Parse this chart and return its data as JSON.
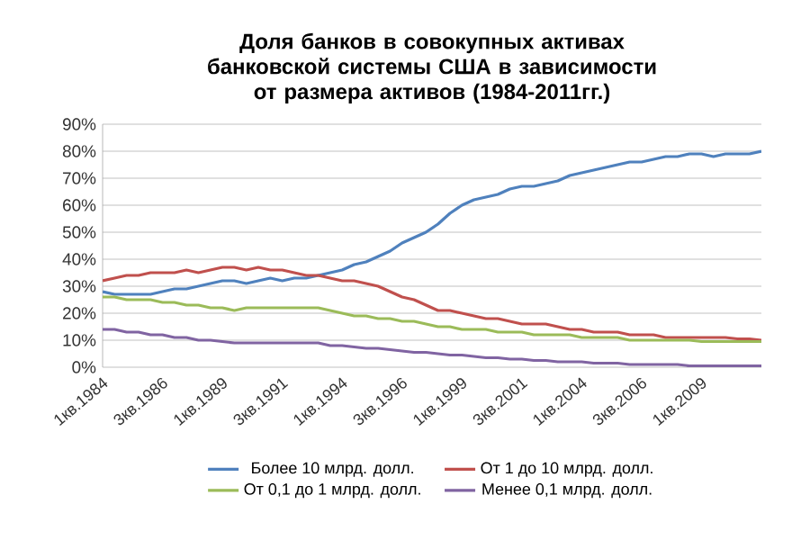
{
  "chart_data": {
    "type": "line",
    "title": "Доля банков в совокупных активах банковской системы США в зависимости от размера активов (1984-2011гг.)",
    "categories": [
      "1кв.1984",
      null,
      null,
      null,
      null,
      "3кв.1986",
      null,
      null,
      null,
      null,
      "1кв.1989",
      null,
      null,
      null,
      null,
      "3кв.1991",
      null,
      null,
      null,
      null,
      "1кв.1994",
      null,
      null,
      null,
      null,
      "3кв.1996",
      null,
      null,
      null,
      null,
      "1кв.1999",
      null,
      null,
      null,
      null,
      "3кв.2001",
      null,
      null,
      null,
      null,
      "1кв.2004",
      null,
      null,
      null,
      null,
      "3кв.2006",
      null,
      null,
      null,
      null,
      "1кв.2009",
      null,
      null,
      null,
      null,
      null
    ],
    "series": [
      {
        "name": "Более 10 млрд. долл.",
        "color": "#4f81bd",
        "values": [
          28,
          27,
          27,
          27,
          27,
          28,
          29,
          29,
          30,
          31,
          32,
          32,
          31,
          32,
          33,
          32,
          33,
          33,
          34,
          35,
          36,
          38,
          39,
          41,
          43,
          46,
          48,
          50,
          53,
          57,
          60,
          62,
          63,
          64,
          66,
          67,
          67,
          68,
          69,
          71,
          72,
          73,
          74,
          75,
          76,
          76,
          77,
          78,
          78,
          79,
          79,
          78,
          79,
          79,
          79,
          80
        ]
      },
      {
        "name": "От 1 до 10 млрд. долл.",
        "color": "#c0504d",
        "values": [
          32,
          33,
          34,
          34,
          35,
          35,
          35,
          36,
          35,
          36,
          37,
          37,
          36,
          37,
          36,
          36,
          35,
          34,
          34,
          33,
          32,
          32,
          31,
          30,
          28,
          26,
          25,
          23,
          21,
          21,
          20,
          19,
          18,
          18,
          17,
          16,
          16,
          16,
          15,
          14,
          14,
          13,
          13,
          13,
          12,
          12,
          12,
          11,
          11,
          11,
          11,
          11,
          11,
          10.5,
          10.5,
          10
        ]
      },
      {
        "name": "От 0,1 до 1 млрд. долл.",
        "color": "#9bbb59",
        "values": [
          26,
          26,
          25,
          25,
          25,
          24,
          24,
          23,
          23,
          22,
          22,
          21,
          22,
          22,
          22,
          22,
          22,
          22,
          22,
          21,
          20,
          19,
          19,
          18,
          18,
          17,
          17,
          16,
          15,
          15,
          14,
          14,
          14,
          13,
          13,
          13,
          12,
          12,
          12,
          12,
          11,
          11,
          11,
          11,
          10,
          10,
          10,
          10,
          10,
          10,
          9.5,
          9.5,
          9.5,
          9.5,
          9.5,
          9.5
        ]
      },
      {
        "name": "Менее 0,1 млрд. долл.",
        "color": "#8064a2",
        "values": [
          14,
          14,
          13,
          13,
          12,
          12,
          11,
          11,
          10,
          10,
          9.5,
          9,
          9,
          9,
          9,
          9,
          9,
          9,
          9,
          8,
          8,
          7.5,
          7,
          7,
          6.5,
          6,
          5.5,
          5.5,
          5,
          4.5,
          4.5,
          4,
          3.5,
          3.5,
          3,
          3,
          2.5,
          2.5,
          2,
          2,
          2,
          1.5,
          1.5,
          1.5,
          1,
          1,
          1,
          1,
          1,
          0.5,
          0.5,
          0.5,
          0.5,
          0.5,
          0.5,
          0.5
        ]
      }
    ],
    "ylim": [
      0,
      90
    ],
    "yticks": [
      {
        "value": 0,
        "label": "0%"
      },
      {
        "value": 10,
        "label": "10%"
      },
      {
        "value": 20,
        "label": "20%"
      },
      {
        "value": 30,
        "label": "30%"
      },
      {
        "value": 40,
        "label": "40%"
      },
      {
        "value": 50,
        "label": "50%"
      },
      {
        "value": 60,
        "label": "60%"
      },
      {
        "value": 70,
        "label": "70%"
      },
      {
        "value": 80,
        "label": "80%"
      },
      {
        "value": 90,
        "label": "90%"
      }
    ],
    "grid": "y",
    "legend": "bottom"
  }
}
